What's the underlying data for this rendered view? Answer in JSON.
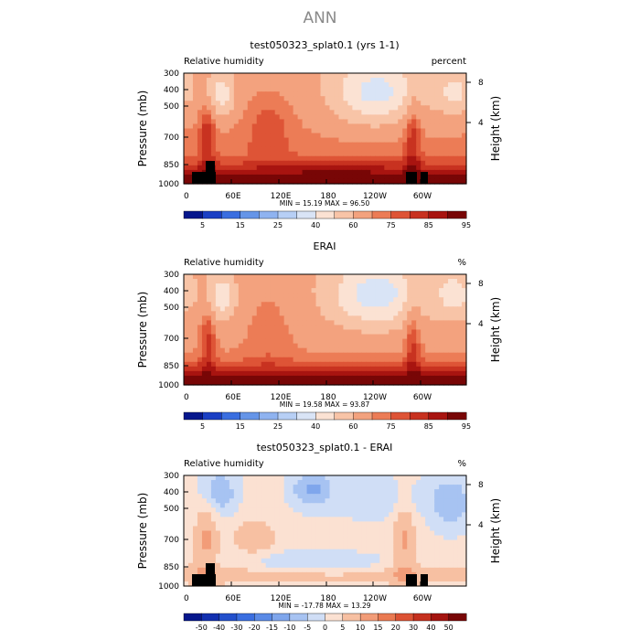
{
  "page_title": "ANN",
  "chart_data": [
    {
      "type": "heatmap",
      "title": "test050323_splat0.1 (yrs 1-1)",
      "left_label": "Relative humidity",
      "right_label": "percent",
      "ylabel": "Pressure (mb)",
      "y2label": "Height (km)",
      "xticks": [
        "0",
        "60E",
        "120E",
        "180",
        "120W",
        "60W"
      ],
      "yticks": [
        "300",
        "400",
        "500",
        "700",
        "850",
        "1000"
      ],
      "y2ticks": [
        "8",
        "4"
      ],
      "stats": "MIN =   15.19   MAX =   96.50",
      "colorbar_labels": [
        "5",
        "15",
        "25",
        "40",
        "60",
        "75",
        "85",
        "95"
      ],
      "colors": [
        "#06178c",
        "#1a3fc4",
        "#3a6ee0",
        "#6595e8",
        "#8fb3f0",
        "#b7cff5",
        "#d9e4f6",
        "#fbe2d3",
        "#f8c4a7",
        "#f3a27e",
        "#ec7c56",
        "#de5436",
        "#c83220",
        "#a81410",
        "#780606"
      ],
      "grid": "field"
    },
    {
      "type": "heatmap",
      "title": "ERAI",
      "left_label": "Relative humidity",
      "right_label": "%",
      "ylabel": "Pressure (mb)",
      "y2label": "Height (km)",
      "xticks": [
        "0",
        "60E",
        "120E",
        "180",
        "120W",
        "60W"
      ],
      "yticks": [
        "300",
        "400",
        "500",
        "700",
        "850",
        "1000"
      ],
      "y2ticks": [
        "8",
        "4"
      ],
      "stats": "MIN =   19.58   MAX =   93.87",
      "colorbar_labels": [
        "5",
        "15",
        "25",
        "40",
        "60",
        "75",
        "85",
        "95"
      ],
      "colors": [
        "#06178c",
        "#1a3fc4",
        "#3a6ee0",
        "#6595e8",
        "#8fb3f0",
        "#b7cff5",
        "#d9e4f6",
        "#fbe2d3",
        "#f8c4a7",
        "#f3a27e",
        "#ec7c56",
        "#de5436",
        "#c83220",
        "#a81410",
        "#780606"
      ],
      "grid": "field"
    },
    {
      "type": "heatmap",
      "title": "test050323_splat0.1 - ERAI",
      "left_label": "Relative humidity",
      "right_label": "%",
      "ylabel": "Pressure (mb)",
      "y2label": "Height (km)",
      "xticks": [
        "0",
        "60E",
        "120E",
        "180",
        "120W",
        "60W"
      ],
      "yticks": [
        "300",
        "400",
        "500",
        "700",
        "850",
        "1000"
      ],
      "y2ticks": [
        "8",
        "4"
      ],
      "stats": "MIN =  -17.78   MAX =   13.29",
      "colorbar_labels": [
        "-50",
        "-40",
        "-30",
        "-20",
        "-15",
        "-10",
        "-5",
        "0",
        "5",
        "10",
        "15",
        "20",
        "30",
        "40",
        "50"
      ],
      "colors": [
        "#06178c",
        "#1230b0",
        "#2350cc",
        "#3a6ee0",
        "#5a8ae6",
        "#7fa6ec",
        "#a7c3f2",
        "#d0def6",
        "#fbe1d2",
        "#f7c0a2",
        "#f29c78",
        "#ea7a52",
        "#dc5234",
        "#c5301e",
        "#a41410",
        "#780606"
      ],
      "grid": "field"
    }
  ]
}
